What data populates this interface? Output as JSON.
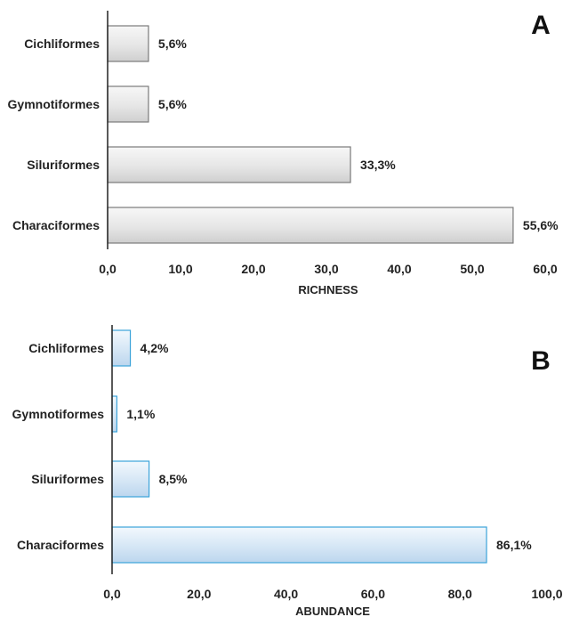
{
  "chart_data": [
    {
      "type": "bar",
      "orientation": "horizontal",
      "panel_label": "A",
      "categories": [
        "Characiformes",
        "Siluriformes",
        "Gymnotiformes",
        "Cichliformes"
      ],
      "values": [
        55.6,
        33.3,
        5.6,
        5.6
      ],
      "value_labels": [
        "55,6%",
        "33,3%",
        "5,6%",
        "5,6%"
      ],
      "xlabel": "RICHNESS",
      "ylabel": "",
      "xlim": [
        0,
        60
      ],
      "xticks": [
        "0,0",
        "10,0",
        "20,0",
        "30,0",
        "40,0",
        "50,0",
        "60,0"
      ],
      "grid": false,
      "bar_color": "#e0e0e0",
      "bar_stroke": "#7a7a7a"
    },
    {
      "type": "bar",
      "orientation": "horizontal",
      "panel_label": "B",
      "categories": [
        "Characiformes",
        "Siluriformes",
        "Gymnotiformes",
        "Cichliformes"
      ],
      "values": [
        86.1,
        8.5,
        1.1,
        4.2
      ],
      "value_labels": [
        "86,1%",
        "8,5%",
        "1,1%",
        "4,2%"
      ],
      "xlabel": "ABUNDANCE",
      "ylabel": "",
      "xlim": [
        0,
        100
      ],
      "xticks": [
        "0,0",
        "20,0",
        "40,0",
        "60,0",
        "80,0",
        "100,0"
      ],
      "grid": false,
      "bar_color": "#cfe2f3",
      "bar_stroke": "#3ba3d9"
    }
  ]
}
